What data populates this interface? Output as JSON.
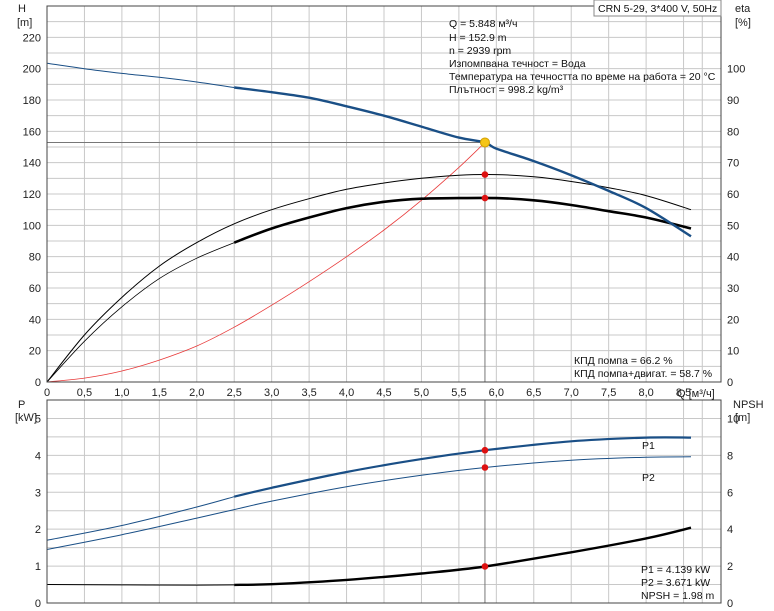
{
  "header": {
    "pump_label": "CRN 5-29, 3*400 V, 50Hz"
  },
  "top_info": [
    "Q = 5.848 м³/ч",
    "H = 152.9 m",
    "n = 2939 rpm",
    "Изпомпвана течност = Вода",
    "Температура на течността по време на работа = 20 °C",
    "Плътност = 998.2 kg/m³"
  ],
  "top_eff_info": [
    "КПД помпа = 66.2 %",
    "КПД помпа+двигат. = 58.7 %"
  ],
  "bottom_info": [
    "P1 = 4.139 kW",
    "P2 = 3.671 kW",
    "NPSH = 1.98 m"
  ],
  "colors": {
    "h_curve": "#1a4f86",
    "efficiency": "#000000",
    "system_curve": "#e83a3a",
    "marker": "#dd1111",
    "duty_point": "#f5c518"
  },
  "chart_data": [
    {
      "type": "line",
      "xlabel": "Q [м³/ч]",
      "ylabel": "H [m]",
      "y2label": "eta [%]",
      "x_ticks": [
        "0",
        "0,5",
        "1,0",
        "1,5",
        "2,0",
        "2,5",
        "3,0",
        "3,5",
        "4,0",
        "4,5",
        "5,0",
        "5,5",
        "6,0",
        "6,5",
        "7,0",
        "7,5",
        "8,0",
        "8,5"
      ],
      "y_ticks": [
        "0",
        "20",
        "40",
        "60",
        "80",
        "100",
        "120",
        "140",
        "160",
        "180",
        "200",
        "220"
      ],
      "y2_ticks": [
        "0",
        "10",
        "20",
        "30",
        "40",
        "50",
        "60",
        "70",
        "80",
        "90",
        "100"
      ],
      "xlim": [
        0,
        9.0
      ],
      "ylim": [
        0,
        240
      ],
      "y2lim": [
        0,
        120
      ],
      "grid": true,
      "duty_point": {
        "q": 5.848,
        "h": 152.9
      },
      "series": [
        {
          "axis": "left",
          "thin_until": 2.5,
          "x": [
            0,
            0.5,
            1.0,
            1.5,
            2.0,
            2.5,
            3.0,
            3.5,
            4.0,
            4.5,
            5.0,
            5.5,
            5.848,
            6.0,
            6.5,
            7.0,
            7.5,
            8.0,
            8.6
          ],
          "y": [
            203.5,
            200,
            197,
            194.5,
            191.5,
            188,
            185,
            181.5,
            176,
            170,
            163,
            156,
            152.9,
            149,
            141,
            132,
            122,
            111,
            93
          ]
        },
        {
          "axis": "right",
          "thin_until": 99,
          "x": [
            0,
            0.5,
            1.0,
            1.5,
            2.0,
            2.5,
            3.0,
            3.5,
            4.0,
            4.5,
            5.0,
            5.5,
            6.0,
            6.5,
            7.0,
            7.5,
            8.0,
            8.6
          ],
          "y": [
            0,
            15,
            27,
            37,
            44.5,
            50.5,
            55,
            58.5,
            61.5,
            63.5,
            65,
            66,
            66.2,
            65.5,
            64,
            62,
            59.5,
            55
          ]
        },
        {
          "axis": "right",
          "thin_until": 2.5,
          "x": [
            0,
            0.5,
            1.0,
            1.5,
            2.0,
            2.5,
            3.0,
            3.5,
            4.0,
            4.5,
            5.0,
            5.5,
            6.0,
            6.5,
            7.0,
            7.5,
            8.0,
            8.6
          ],
          "y": [
            0,
            13,
            24,
            33,
            39.5,
            44.5,
            49,
            52.5,
            55.5,
            57.5,
            58.5,
            58.7,
            58.7,
            58,
            56.5,
            54.5,
            52.5,
            49
          ]
        },
        {
          "axis": "left",
          "thin_until": 99,
          "x": [
            0,
            0.5,
            1.0,
            1.5,
            2.0,
            2.5,
            3.0,
            3.5,
            4.0,
            4.5,
            5.0,
            5.5,
            5.848
          ],
          "y": [
            0,
            2.5,
            7,
            14,
            23,
            35,
            49,
            64,
            80,
            97,
            116,
            137,
            152.9
          ]
        }
      ],
      "markers": [
        {
          "q": 5.848,
          "eta": 66.2
        },
        {
          "q": 5.848,
          "eta": 58.7
        }
      ]
    },
    {
      "type": "line",
      "ylabel": "P [kW]",
      "y2label": "NPSH [m]",
      "y_ticks": [
        "0",
        "1",
        "2",
        "3",
        "4",
        "5"
      ],
      "y2_ticks": [
        "0",
        "2",
        "4",
        "6",
        "8",
        "10"
      ],
      "ylim": [
        0,
        5.5
      ],
      "y2lim": [
        0,
        11
      ],
      "grid": true,
      "series": [
        {
          "name": "P1",
          "axis": "left",
          "thin_until": 2.5,
          "x": [
            0,
            1.0,
            2.0,
            2.5,
            3.0,
            4.0,
            5.0,
            5.848,
            7.0,
            8.0,
            8.6
          ],
          "y": [
            1.7,
            2.1,
            2.6,
            2.88,
            3.12,
            3.55,
            3.9,
            4.139,
            4.38,
            4.48,
            4.48
          ]
        },
        {
          "name": "P2",
          "axis": "left",
          "thin_until": 99,
          "x": [
            0,
            1.0,
            2.0,
            2.5,
            3.0,
            4.0,
            5.0,
            5.848,
            7.0,
            8.0,
            8.6
          ],
          "y": [
            1.45,
            1.85,
            2.3,
            2.53,
            2.76,
            3.15,
            3.46,
            3.671,
            3.87,
            3.95,
            3.96
          ]
        },
        {
          "name": "NPSH",
          "axis": "right",
          "thin_until": 2.5,
          "x": [
            0,
            1.0,
            2.0,
            2.5,
            3.0,
            4.0,
            5.0,
            5.848,
            7.0,
            8.0,
            8.6
          ],
          "y": [
            1.0,
            0.98,
            0.97,
            0.98,
            1.02,
            1.25,
            1.6,
            1.98,
            2.75,
            3.5,
            4.08
          ]
        }
      ],
      "markers": [
        {
          "q": 5.848,
          "p": 4.139
        },
        {
          "q": 5.848,
          "p": 3.671
        },
        {
          "q": 5.848,
          "npsh": 1.98
        }
      ]
    }
  ]
}
